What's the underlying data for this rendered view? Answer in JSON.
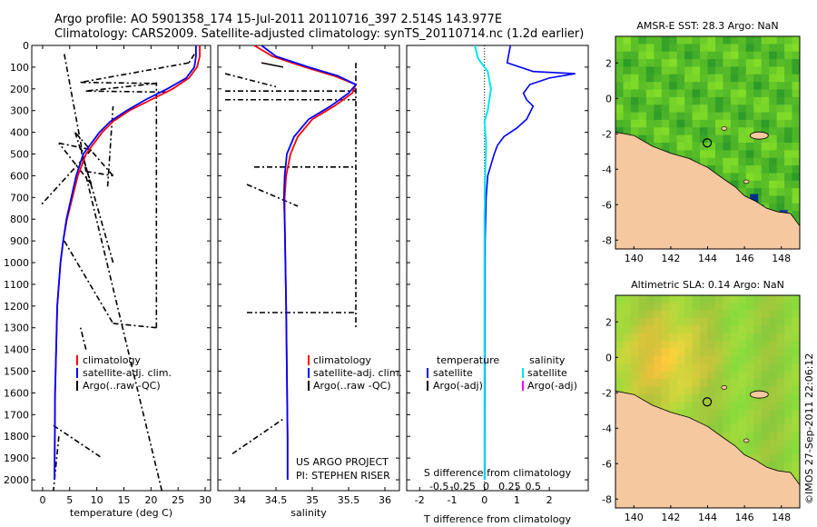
{
  "header": {
    "line1": "Argo profile: AO 5901358_174 15-Jul-2011 20110716_397 2.514S 143.977E",
    "line2": "Climatology: CARS2009. Satellite-adjusted climatology: synTS_20110714.nc (1.2d earlier)"
  },
  "stamp": "©IMOS 27-Sep-2011 22:06:12",
  "colors": {
    "climatology": "#ff0000",
    "satellite": "#0000ff",
    "argo": "#000000",
    "satellite_s": "#00e5ee",
    "argo_s": "#ff00ff",
    "land": "#f6c89f"
  },
  "chart_data": [
    {
      "id": "temperature",
      "type": "line",
      "xlabel": "temperature (deg C)",
      "ylabel": "",
      "xlim": [
        -2,
        31
      ],
      "ylim": [
        2050,
        0
      ],
      "xticks": [
        0,
        5,
        10,
        15,
        20,
        25,
        30
      ],
      "yticks": [
        0,
        100,
        200,
        300,
        400,
        500,
        600,
        700,
        800,
        900,
        1000,
        1100,
        1200,
        1300,
        1400,
        1500,
        1600,
        1700,
        1800,
        1900,
        2000
      ],
      "legend": [
        "climatology",
        "satellite-adj. clim.",
        "Argo(..raw -QC)"
      ],
      "series": [
        {
          "name": "climatology",
          "color": "#ff0000",
          "x": [
            29,
            29,
            28.5,
            27,
            24,
            20,
            16,
            13,
            11,
            9.5,
            8,
            6.5,
            5.5,
            4.5,
            3.8,
            3.3,
            3,
            2.7,
            2.5,
            2.3,
            2.2
          ],
          "y": [
            0,
            50,
            100,
            150,
            200,
            250,
            300,
            350,
            400,
            450,
            500,
            600,
            700,
            800,
            900,
            1000,
            1100,
            1200,
            1400,
            1600,
            2000
          ]
        },
        {
          "name": "satellite-adj. clim.",
          "color": "#0000ff",
          "x": [
            28.3,
            28.3,
            28,
            26.5,
            23,
            19,
            15.5,
            12.5,
            10.5,
            9,
            7.5,
            6.2,
            5.3,
            4.4,
            3.8,
            3.3,
            3,
            2.7,
            2.5,
            2.3,
            2.2
          ],
          "y": [
            0,
            50,
            100,
            150,
            200,
            250,
            300,
            350,
            400,
            450,
            500,
            600,
            700,
            800,
            900,
            1000,
            1100,
            1200,
            1400,
            1600,
            2000
          ]
        },
        {
          "name": "Argo(..raw -QC)",
          "color": "#000000",
          "x": [
            28,
            27,
            8,
            15,
            7,
            5,
            9,
            12,
            13,
            6,
            7,
            12,
            6,
            11,
            21,
            17,
            3,
            4,
            10,
            2,
            8,
            22
          ],
          "y": [
            40,
            80,
            170,
            210,
            220,
            400,
            520,
            580,
            700,
            450,
            500,
            650,
            900,
            1000,
            1280,
            1300,
            1750,
            1800,
            1900,
            1980,
            600,
            2050
          ]
        }
      ]
    },
    {
      "id": "salinity",
      "type": "line",
      "xlabel": "salinity",
      "xlim": [
        33.7,
        36.2
      ],
      "ylim": [
        2050,
        0
      ],
      "xticks": [
        34,
        34.5,
        35,
        35.5,
        36
      ],
      "legend": [
        "climatology",
        "satellite-adj. clim.",
        "Argo(..raw -QC)"
      ],
      "series": [
        {
          "name": "climatology",
          "color": "#ff0000",
          "x": [
            34.2,
            34.45,
            34.9,
            35.3,
            35.6,
            35.55,
            35.3,
            35.0,
            34.8,
            34.7,
            34.64,
            34.62,
            34.62,
            34.63,
            34.64,
            34.65,
            34.66,
            34.66
          ],
          "y": [
            0,
            50,
            100,
            140,
            180,
            220,
            280,
            340,
            420,
            500,
            600,
            700,
            800,
            1000,
            1200,
            1500,
            1800,
            2000
          ]
        },
        {
          "name": "satellite-adj. clim.",
          "color": "#0000ff",
          "x": [
            34.3,
            34.5,
            34.95,
            35.35,
            35.6,
            35.5,
            35.25,
            34.95,
            34.75,
            34.65,
            34.62,
            34.61,
            34.62,
            34.63,
            34.64,
            34.65,
            34.66,
            34.66
          ],
          "y": [
            0,
            50,
            100,
            140,
            180,
            220,
            280,
            340,
            420,
            500,
            600,
            700,
            800,
            1000,
            1200,
            1500,
            1800,
            2000
          ]
        },
        {
          "name": "Argo(..raw -QC)",
          "color": "#000000",
          "x": [
            34.3,
            34.6,
            35.6,
            33.8,
            35.6,
            33.9,
            35.6,
            34.0,
            35.6,
            34.5,
            34.1,
            34.6,
            35.6,
            34.0
          ],
          "y": [
            80,
            100,
            200,
            210,
            250,
            300,
            350,
            360,
            560,
            600,
            650,
            700,
            1300,
            1890
          ],
          "segments": [
            [
              33.8,
              130,
              34.5,
              190
            ],
            [
              33.8,
              210,
              35.6,
              210
            ],
            [
              33.8,
              250,
              35.6,
              250
            ],
            [
              34.2,
              560,
              35.6,
              560
            ],
            [
              34.1,
              640,
              34.8,
              740
            ],
            [
              34.1,
              1230,
              35.6,
              1230
            ],
            [
              33.9,
              1880,
              34.6,
              1720
            ]
          ]
        }
      ]
    },
    {
      "id": "difference",
      "type": "line",
      "xlabel": "T difference from climatology",
      "xlabel_top": "S difference from climatology",
      "xlim": [
        -2.4,
        3.2
      ],
      "ylim": [
        2050,
        0
      ],
      "xticks_T": [
        -2,
        -1,
        0,
        1,
        2
      ],
      "xticks_S": [
        "-0.5",
        "-0.25",
        "0",
        "0.25",
        "0.5"
      ],
      "legend_temperature": [
        "temperature",
        "satellite",
        "Argo(-adj)"
      ],
      "legend_salinity": [
        "salinity",
        "satellite",
        "Argo(-adj)"
      ],
      "series": [
        {
          "name": "temperature satellite",
          "color": "#0000ff",
          "x": [
            0.8,
            0.7,
            1.5,
            2.8,
            2.0,
            1.4,
            1.2,
            1.3,
            1.5,
            1.4,
            1.3,
            1.0,
            0.6,
            0.4,
            0.3,
            0.2,
            0.1,
            0.05,
            0.02,
            0.01
          ],
          "y": [
            0,
            80,
            120,
            130,
            150,
            180,
            220,
            250,
            280,
            310,
            340,
            380,
            420,
            460,
            500,
            550,
            600,
            700,
            900,
            2000
          ]
        },
        {
          "name": "salinity satellite",
          "color": "#00e5ee",
          "x": [
            -0.3,
            -0.2,
            0.1,
            0.2,
            0.15,
            0.1,
            0.0,
            0.05,
            0.02,
            0.0,
            0.0
          ],
          "y": [
            0,
            60,
            120,
            200,
            250,
            300,
            350,
            450,
            600,
            800,
            2000
          ]
        }
      ]
    },
    {
      "id": "sst_map",
      "type": "heatmap",
      "title": "AMSR-E SST: 28.3 Argo: NaN",
      "xlim": [
        139,
        149
      ],
      "ylim": [
        -8.5,
        3.5
      ],
      "xticks": [
        140,
        142,
        144,
        146,
        148
      ],
      "yticks": [
        -8,
        -6,
        -4,
        -2,
        0,
        2
      ],
      "marker": {
        "lon": 143.977,
        "lat": -2.514
      }
    },
    {
      "id": "sla_map",
      "type": "heatmap",
      "title": "Altimetric SLA: 0.14 Argo: NaN",
      "xlim": [
        139,
        149
      ],
      "ylim": [
        -8.5,
        3.5
      ],
      "xticks": [
        140,
        142,
        144,
        146,
        148
      ],
      "yticks": [
        -8,
        -6,
        -4,
        -2,
        0,
        2
      ],
      "marker": {
        "lon": 143.977,
        "lat": -2.514
      }
    }
  ],
  "footer": {
    "project": "US ARGO PROJECT",
    "pi": "PI: STEPHEN RISER"
  }
}
